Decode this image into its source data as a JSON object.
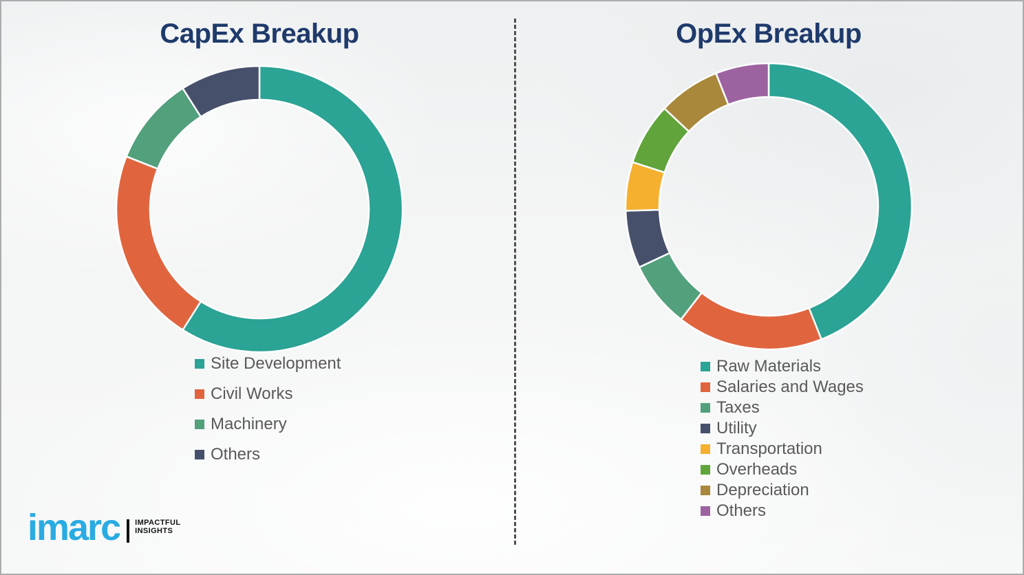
{
  "page": {
    "layout": "two-donut-infographic"
  },
  "theme": {
    "title_color": "#1f3a6b",
    "legend_text_color": "#595959",
    "divider_color": "#4f4f4f",
    "background_color": "#f3f4f4",
    "border_color": "#a9adad",
    "segment_gap_color": "#ffffff"
  },
  "branding": {
    "logo_text": "imarc",
    "logo_color": "#2aabe2",
    "tagline_line1": "IMPACTFUL",
    "tagline_line2": "INSIGHTS",
    "tagline_color": "#111111"
  },
  "chart_data": [
    {
      "type": "pie",
      "variant": "donut",
      "title": "CapEx Breakup",
      "legend_position": "below-left",
      "values_are": "estimated-percent-of-total",
      "segments": [
        {
          "label": "Site Development",
          "value": 59,
          "color": "#2ba395"
        },
        {
          "label": "Civil Works",
          "value": 22,
          "color": "#e0653f"
        },
        {
          "label": "Machinery",
          "value": 10,
          "color": "#53a07c"
        },
        {
          "label": "Others",
          "value": 9,
          "color": "#47506b"
        }
      ]
    },
    {
      "type": "pie",
      "variant": "donut",
      "title": "OpEx Breakup",
      "legend_position": "below-left",
      "values_are": "estimated-percent-of-total",
      "segments": [
        {
          "label": "Raw Materials",
          "value": 44,
          "color": "#2ba395"
        },
        {
          "label": "Salaries and Wages",
          "value": 16.5,
          "color": "#e0653f"
        },
        {
          "label": "Taxes",
          "value": 7.5,
          "color": "#53a07c"
        },
        {
          "label": "Utility",
          "value": 6.5,
          "color": "#47506b"
        },
        {
          "label": "Transportation",
          "value": 5.5,
          "color": "#f5b02f"
        },
        {
          "label": "Overheads",
          "value": 7,
          "color": "#61a43b"
        },
        {
          "label": "Depreciation",
          "value": 7,
          "color": "#a9883c"
        },
        {
          "label": "Others",
          "value": 6,
          "color": "#9d63a0"
        }
      ]
    }
  ]
}
